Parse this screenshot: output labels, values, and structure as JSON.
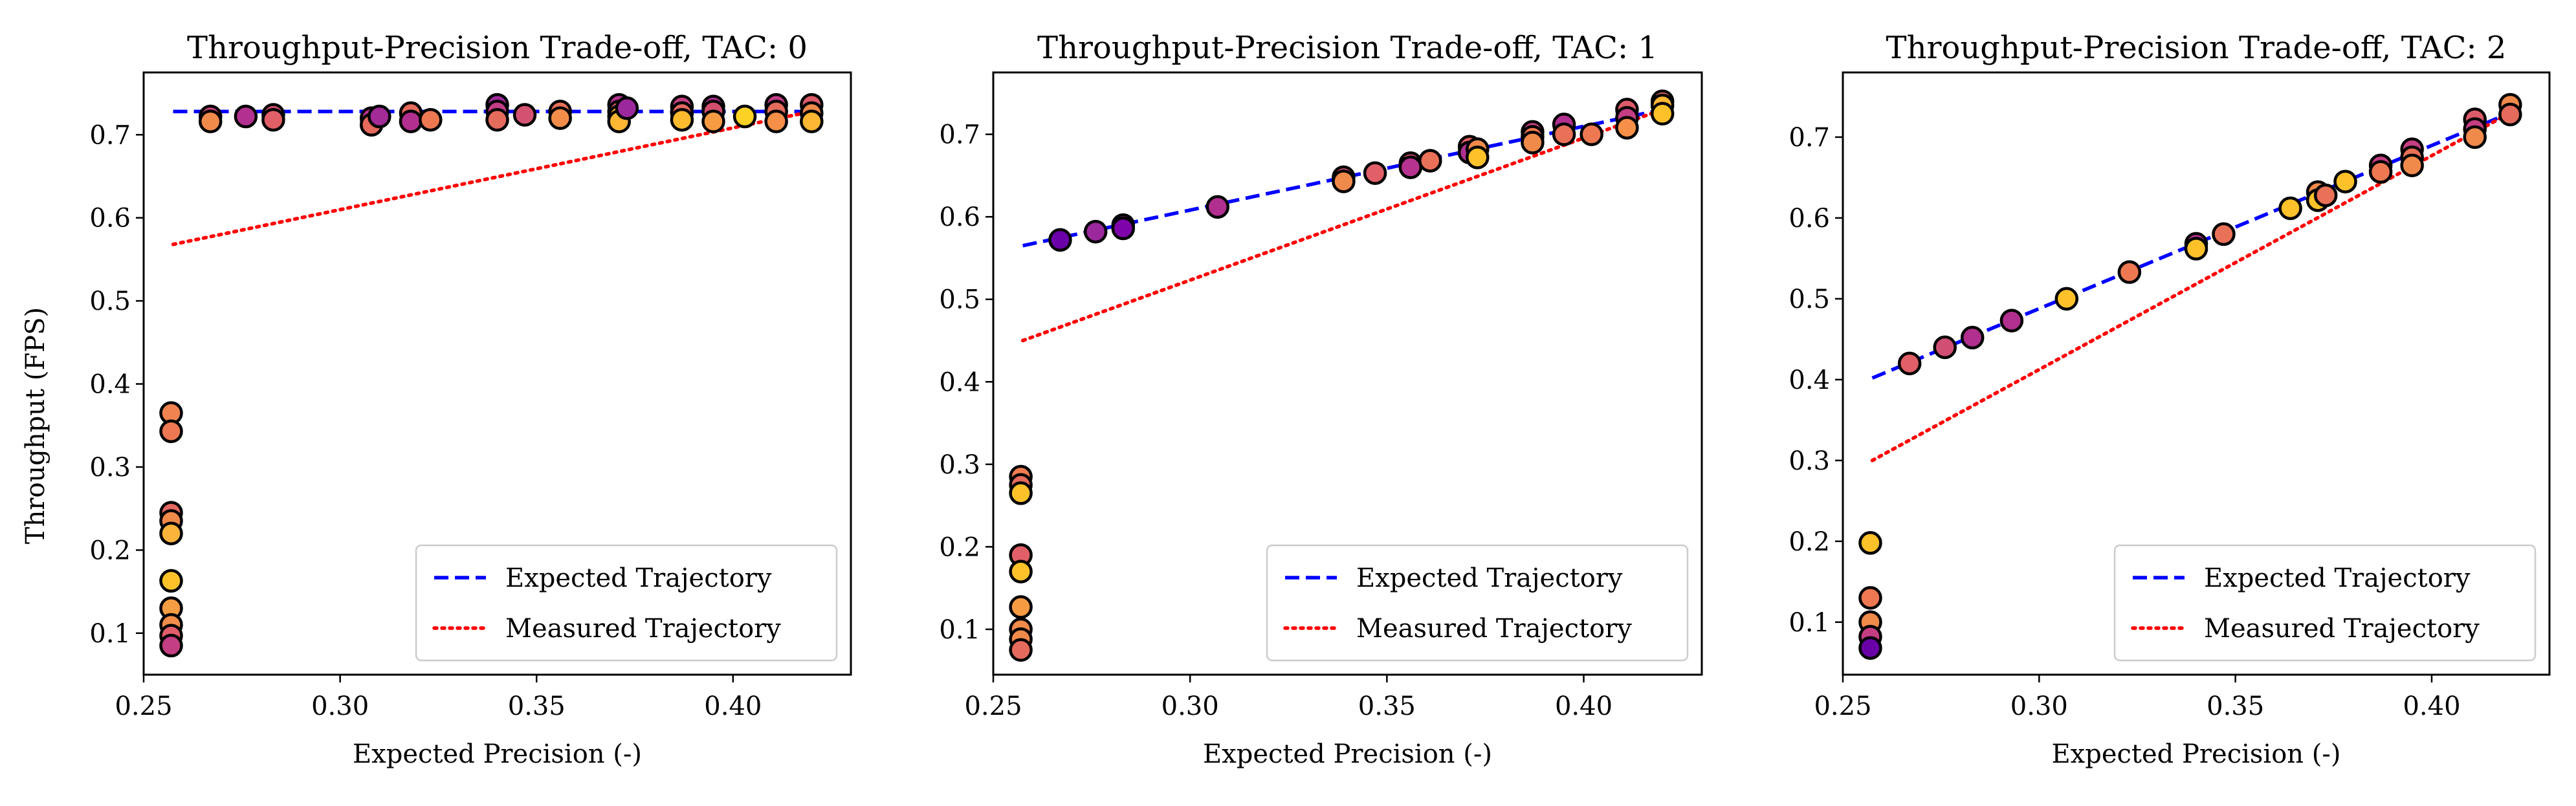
{
  "figure": {
    "ylabel": "Throughput (FPS)"
  },
  "chart_data": [
    {
      "type": "scatter",
      "title": "Throughput-Precision Trade-off, TAC: 0",
      "xlabel": "Expected Precision (-)",
      "ylabel": "Throughput (FPS)",
      "xlim": [
        0.25,
        0.43
      ],
      "ylim": [
        0.05,
        0.775
      ],
      "xticks": [
        "0.25",
        "0.30",
        "0.35",
        "0.40"
      ],
      "yticks": [
        "0.1",
        "0.2",
        "0.3",
        "0.4",
        "0.5",
        "0.6",
        "0.7"
      ],
      "grid": false,
      "legend_position": "lower right",
      "series": [
        {
          "name": "Expected Trajectory",
          "kind": "line",
          "style": "dashed",
          "color": "#0000ff",
          "x": [
            0.2575,
            0.42
          ],
          "y": [
            0.728,
            0.728
          ]
        },
        {
          "name": "Measured Trajectory",
          "kind": "line",
          "style": "dotted",
          "color": "#ff0000",
          "x": [
            0.2575,
            0.42
          ],
          "y": [
            0.568,
            0.728
          ]
        }
      ],
      "points": [
        {
          "x": 0.257,
          "y": 0.365,
          "c": "#f0834f"
        },
        {
          "x": 0.257,
          "y": 0.343,
          "c": "#ee7852"
        },
        {
          "x": 0.257,
          "y": 0.245,
          "c": "#e36862"
        },
        {
          "x": 0.257,
          "y": 0.235,
          "c": "#f08a4b"
        },
        {
          "x": 0.257,
          "y": 0.22,
          "c": "#fcb33b"
        },
        {
          "x": 0.257,
          "y": 0.163,
          "c": "#fdc229"
        },
        {
          "x": 0.257,
          "y": 0.13,
          "c": "#f59d42"
        },
        {
          "x": 0.257,
          "y": 0.11,
          "c": "#f28e49"
        },
        {
          "x": 0.257,
          "y": 0.097,
          "c": "#e05d6a"
        },
        {
          "x": 0.257,
          "y": 0.085,
          "c": "#c43e83"
        },
        {
          "x": 0.267,
          "y": 0.722,
          "c": "#c8417e"
        },
        {
          "x": 0.267,
          "y": 0.716,
          "c": "#f08a4b"
        },
        {
          "x": 0.276,
          "y": 0.722,
          "c": "#b2308f"
        },
        {
          "x": 0.283,
          "y": 0.724,
          "c": "#d04f72"
        },
        {
          "x": 0.283,
          "y": 0.718,
          "c": "#e15f66"
        },
        {
          "x": 0.308,
          "y": 0.72,
          "c": "#b73390"
        },
        {
          "x": 0.308,
          "y": 0.712,
          "c": "#e66a5d"
        },
        {
          "x": 0.31,
          "y": 0.722,
          "c": "#a22b98"
        },
        {
          "x": 0.318,
          "y": 0.726,
          "c": "#e56b5d"
        },
        {
          "x": 0.318,
          "y": 0.716,
          "c": "#b12f8f"
        },
        {
          "x": 0.323,
          "y": 0.718,
          "c": "#ed7953"
        },
        {
          "x": 0.34,
          "y": 0.736,
          "c": "#9f2a9a"
        },
        {
          "x": 0.34,
          "y": 0.728,
          "c": "#c23d86"
        },
        {
          "x": 0.34,
          "y": 0.718,
          "c": "#e56b5d"
        },
        {
          "x": 0.347,
          "y": 0.724,
          "c": "#d45271"
        },
        {
          "x": 0.356,
          "y": 0.728,
          "c": "#e97158"
        },
        {
          "x": 0.356,
          "y": 0.72,
          "c": "#f28e49"
        },
        {
          "x": 0.371,
          "y": 0.736,
          "c": "#b53490"
        },
        {
          "x": 0.371,
          "y": 0.728,
          "c": "#dd5b69"
        },
        {
          "x": 0.371,
          "y": 0.722,
          "c": "#fdc229"
        },
        {
          "x": 0.371,
          "y": 0.716,
          "c": "#fdb733"
        },
        {
          "x": 0.373,
          "y": 0.732,
          "c": "#9c289d"
        },
        {
          "x": 0.387,
          "y": 0.734,
          "c": "#c43e83"
        },
        {
          "x": 0.387,
          "y": 0.726,
          "c": "#e36862"
        },
        {
          "x": 0.387,
          "y": 0.718,
          "c": "#fdbb2f"
        },
        {
          "x": 0.395,
          "y": 0.734,
          "c": "#b12f8f"
        },
        {
          "x": 0.395,
          "y": 0.728,
          "c": "#d24f70"
        },
        {
          "x": 0.395,
          "y": 0.716,
          "c": "#f79b43"
        },
        {
          "x": 0.403,
          "y": 0.722,
          "c": "#fcd225"
        },
        {
          "x": 0.411,
          "y": 0.736,
          "c": "#c23d86"
        },
        {
          "x": 0.411,
          "y": 0.728,
          "c": "#e56b5d"
        },
        {
          "x": 0.411,
          "y": 0.716,
          "c": "#f68f47"
        },
        {
          "x": 0.42,
          "y": 0.736,
          "c": "#dd5b69"
        },
        {
          "x": 0.42,
          "y": 0.726,
          "c": "#f08a4b"
        },
        {
          "x": 0.42,
          "y": 0.716,
          "c": "#fdb733"
        }
      ]
    },
    {
      "type": "scatter",
      "title": "Throughput-Precision Trade-off, TAC: 1",
      "xlabel": "Expected Precision (-)",
      "ylabel": "",
      "xlim": [
        0.25,
        0.43
      ],
      "ylim": [
        0.045,
        0.775
      ],
      "xticks": [
        "0.25",
        "0.30",
        "0.35",
        "0.40"
      ],
      "yticks": [
        "0.1",
        "0.2",
        "0.3",
        "0.4",
        "0.5",
        "0.6",
        "0.7"
      ],
      "grid": false,
      "legend_position": "lower right",
      "series": [
        {
          "name": "Expected Trajectory",
          "kind": "line",
          "style": "dashed",
          "color": "#0000ff",
          "x": [
            0.2575,
            0.42
          ],
          "y": [
            0.565,
            0.73
          ]
        },
        {
          "name": "Measured Trajectory",
          "kind": "line",
          "style": "dotted",
          "color": "#ff0000",
          "x": [
            0.2575,
            0.42
          ],
          "y": [
            0.45,
            0.73
          ]
        }
      ],
      "points": [
        {
          "x": 0.257,
          "y": 0.285,
          "c": "#ef7d50"
        },
        {
          "x": 0.257,
          "y": 0.275,
          "c": "#e56b5d"
        },
        {
          "x": 0.257,
          "y": 0.265,
          "c": "#fdc229"
        },
        {
          "x": 0.257,
          "y": 0.19,
          "c": "#e15f66"
        },
        {
          "x": 0.257,
          "y": 0.17,
          "c": "#fdc229"
        },
        {
          "x": 0.257,
          "y": 0.127,
          "c": "#f79b43"
        },
        {
          "x": 0.257,
          "y": 0.1,
          "c": "#f08a4b"
        },
        {
          "x": 0.257,
          "y": 0.088,
          "c": "#f08a4b"
        },
        {
          "x": 0.257,
          "y": 0.075,
          "c": "#e56b5d"
        },
        {
          "x": 0.267,
          "y": 0.572,
          "c": "#6a00a8"
        },
        {
          "x": 0.276,
          "y": 0.582,
          "c": "#9c289d"
        },
        {
          "x": 0.283,
          "y": 0.59,
          "c": "#b12f8f"
        },
        {
          "x": 0.283,
          "y": 0.586,
          "c": "#7e03a8"
        },
        {
          "x": 0.307,
          "y": 0.612,
          "c": "#b12f8f"
        },
        {
          "x": 0.339,
          "y": 0.648,
          "c": "#d04f72"
        },
        {
          "x": 0.339,
          "y": 0.643,
          "c": "#f08a4b"
        },
        {
          "x": 0.347,
          "y": 0.653,
          "c": "#e15f66"
        },
        {
          "x": 0.356,
          "y": 0.665,
          "c": "#d45271"
        },
        {
          "x": 0.356,
          "y": 0.66,
          "c": "#b73390"
        },
        {
          "x": 0.361,
          "y": 0.668,
          "c": "#e97158"
        },
        {
          "x": 0.371,
          "y": 0.685,
          "c": "#e15f66"
        },
        {
          "x": 0.371,
          "y": 0.678,
          "c": "#b12f8f"
        },
        {
          "x": 0.373,
          "y": 0.682,
          "c": "#f08a4b"
        },
        {
          "x": 0.373,
          "y": 0.672,
          "c": "#fdc229"
        },
        {
          "x": 0.387,
          "y": 0.703,
          "c": "#c43e83"
        },
        {
          "x": 0.387,
          "y": 0.697,
          "c": "#ee7852"
        },
        {
          "x": 0.387,
          "y": 0.69,
          "c": "#f08a4b"
        },
        {
          "x": 0.395,
          "y": 0.712,
          "c": "#b12f8f"
        },
        {
          "x": 0.395,
          "y": 0.7,
          "c": "#e97158"
        },
        {
          "x": 0.402,
          "y": 0.7,
          "c": "#ee7852"
        },
        {
          "x": 0.411,
          "y": 0.73,
          "c": "#dd5b69"
        },
        {
          "x": 0.411,
          "y": 0.72,
          "c": "#c43e83"
        },
        {
          "x": 0.411,
          "y": 0.708,
          "c": "#f68f47"
        },
        {
          "x": 0.42,
          "y": 0.74,
          "c": "#e56b5d"
        },
        {
          "x": 0.42,
          "y": 0.735,
          "c": "#fdb733"
        },
        {
          "x": 0.42,
          "y": 0.725,
          "c": "#fdc229"
        }
      ]
    },
    {
      "type": "scatter",
      "title": "Throughput-Precision Trade-off, TAC: 2",
      "xlabel": "Expected Precision (-)",
      "ylabel": "",
      "xlim": [
        0.25,
        0.43
      ],
      "ylim": [
        0.035,
        0.78
      ],
      "xticks": [
        "0.25",
        "0.30",
        "0.35",
        "0.40"
      ],
      "yticks": [
        "0.1",
        "0.2",
        "0.3",
        "0.4",
        "0.5",
        "0.6",
        "0.7"
      ],
      "grid": false,
      "legend_position": "lower right",
      "series": [
        {
          "name": "Expected Trajectory",
          "kind": "line",
          "style": "dashed",
          "color": "#0000ff",
          "x": [
            0.2575,
            0.42
          ],
          "y": [
            0.402,
            0.73
          ]
        },
        {
          "name": "Measured Trajectory",
          "kind": "line",
          "style": "dotted",
          "color": "#ff0000",
          "x": [
            0.2575,
            0.42
          ],
          "y": [
            0.3,
            0.73
          ]
        }
      ],
      "points": [
        {
          "x": 0.257,
          "y": 0.198,
          "c": "#fdc229"
        },
        {
          "x": 0.257,
          "y": 0.13,
          "c": "#ee7852"
        },
        {
          "x": 0.257,
          "y": 0.1,
          "c": "#f08a4b"
        },
        {
          "x": 0.257,
          "y": 0.082,
          "c": "#c43e83"
        },
        {
          "x": 0.257,
          "y": 0.068,
          "c": "#6a00a8"
        },
        {
          "x": 0.267,
          "y": 0.42,
          "c": "#e15f66"
        },
        {
          "x": 0.276,
          "y": 0.44,
          "c": "#d04f72"
        },
        {
          "x": 0.283,
          "y": 0.452,
          "c": "#b12f8f"
        },
        {
          "x": 0.293,
          "y": 0.473,
          "c": "#b12f8f"
        },
        {
          "x": 0.307,
          "y": 0.5,
          "c": "#fdc229"
        },
        {
          "x": 0.323,
          "y": 0.533,
          "c": "#ee7852"
        },
        {
          "x": 0.34,
          "y": 0.568,
          "c": "#b12f8f"
        },
        {
          "x": 0.34,
          "y": 0.562,
          "c": "#fdc229"
        },
        {
          "x": 0.347,
          "y": 0.58,
          "c": "#e97158"
        },
        {
          "x": 0.364,
          "y": 0.612,
          "c": "#fdc229"
        },
        {
          "x": 0.371,
          "y": 0.632,
          "c": "#f08a4b"
        },
        {
          "x": 0.371,
          "y": 0.622,
          "c": "#fdc229"
        },
        {
          "x": 0.373,
          "y": 0.628,
          "c": "#e97158"
        },
        {
          "x": 0.378,
          "y": 0.645,
          "c": "#fdc229"
        },
        {
          "x": 0.387,
          "y": 0.665,
          "c": "#c43e83"
        },
        {
          "x": 0.387,
          "y": 0.657,
          "c": "#ee7852"
        },
        {
          "x": 0.395,
          "y": 0.685,
          "c": "#c43e83"
        },
        {
          "x": 0.395,
          "y": 0.675,
          "c": "#e97158"
        },
        {
          "x": 0.395,
          "y": 0.665,
          "c": "#f08a4b"
        },
        {
          "x": 0.411,
          "y": 0.722,
          "c": "#dd5b69"
        },
        {
          "x": 0.411,
          "y": 0.71,
          "c": "#c43e83"
        },
        {
          "x": 0.411,
          "y": 0.7,
          "c": "#f08a4b"
        },
        {
          "x": 0.42,
          "y": 0.74,
          "c": "#f08a4b"
        },
        {
          "x": 0.42,
          "y": 0.728,
          "c": "#e56b5d"
        }
      ]
    }
  ]
}
